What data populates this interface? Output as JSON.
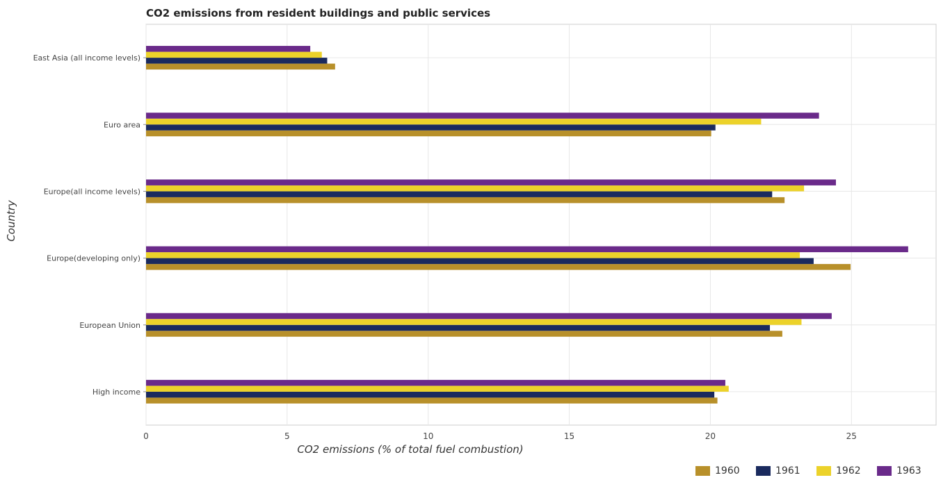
{
  "chart_data": {
    "type": "bar",
    "orientation": "horizontal",
    "title": "CO2 emissions from resident buildings and public services",
    "xlabel": "CO2 emissions (% of total fuel combustion)",
    "ylabel": "Country",
    "xlim": [
      0,
      28
    ],
    "xticks": [
      0,
      5,
      10,
      15,
      20,
      25
    ],
    "grid": true,
    "legend_position": "bottom-right",
    "categories": [
      "East Asia (all income levels)",
      "Euro area",
      "Europe(all income levels)",
      "Europe(developing only)",
      "European Union",
      "High income"
    ],
    "series": [
      {
        "name": "1960",
        "color": "#b8902a",
        "values": [
          6.7,
          20.03,
          22.63,
          24.97,
          22.55,
          20.25
        ]
      },
      {
        "name": "1961",
        "color": "#1a2a5e",
        "values": [
          6.42,
          20.18,
          22.19,
          23.66,
          22.11,
          20.14
        ]
      },
      {
        "name": "1962",
        "color": "#ecd22a",
        "values": [
          6.23,
          21.8,
          23.32,
          23.17,
          23.23,
          20.65
        ]
      },
      {
        "name": "1963",
        "color": "#6a2a8a",
        "values": [
          5.82,
          23.85,
          24.45,
          27.01,
          24.3,
          20.53
        ]
      }
    ]
  }
}
